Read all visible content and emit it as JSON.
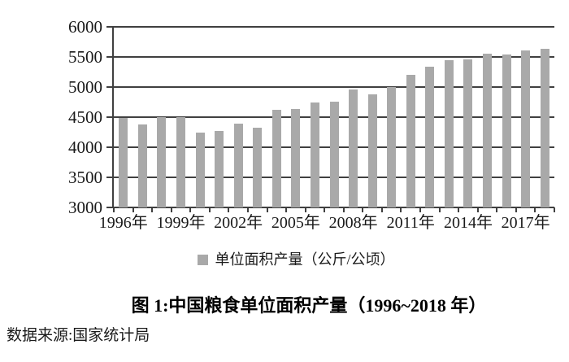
{
  "figure": {
    "caption": "图 1:中国粮食单位面积产量（1996~2018 年）",
    "source_note": "数据来源:国家统计局"
  },
  "chart_data": {
    "type": "bar",
    "title": "图 1:中国粮食单位面积产量（1996~2018 年）",
    "series_name": "单位面积产量",
    "unit": "公斤/公顷",
    "legend": [
      "单位面积产量（公斤/公顷）"
    ],
    "legend_position": "bottom",
    "categories": [
      "1996",
      "1997",
      "1998",
      "1999",
      "2000",
      "2001",
      "2002",
      "2003",
      "2004",
      "2005",
      "2006",
      "2007",
      "2008",
      "2009",
      "2010",
      "2011",
      "2012",
      "2013",
      "2014",
      "2015",
      "2016",
      "2017",
      "2018"
    ],
    "values": [
      4480,
      4380,
      4500,
      4500,
      4250,
      4270,
      4390,
      4330,
      4620,
      4640,
      4740,
      4760,
      4960,
      4880,
      5000,
      5200,
      5340,
      5440,
      5460,
      5550,
      5540,
      5610,
      5630
    ],
    "xlabel": "",
    "ylabel": "",
    "ylim": [
      3000,
      6000
    ],
    "yticks": [
      3000,
      3500,
      4000,
      4500,
      5000,
      5500,
      6000
    ],
    "xtick_labels": [
      "1996年",
      "1999年",
      "2002年",
      "2005年",
      "2008年",
      "2011年",
      "2014年",
      "2017年"
    ],
    "xtick_every": 3,
    "grid": true,
    "bar_color": "#a9a9a9",
    "axis_color": "#404040",
    "text_color": "#1a1a1a"
  }
}
